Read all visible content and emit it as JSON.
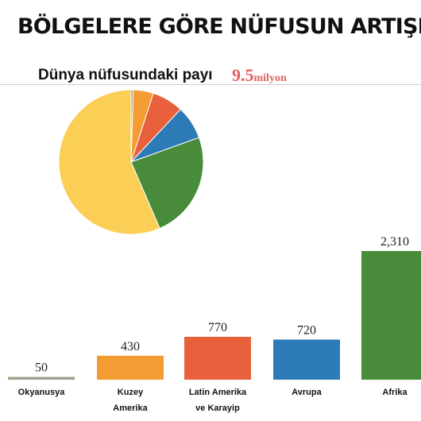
{
  "title": "BÖLGELERE GÖRE NÜFUSUN ARTIŞI",
  "pie": {
    "label": "Dünya nüfusundaki payı",
    "total_value": "9.5",
    "total_unit": "milyon"
  },
  "chart_data": [
    {
      "type": "pie",
      "title": "Dünya nüfusundaki payı",
      "values": [
        0.5,
        4.5,
        7.0,
        7.5,
        24.0,
        56.5
      ],
      "colors": [
        "#9ea08c",
        "#f49c34",
        "#e8613c",
        "#2c7bb6",
        "#478b3b",
        "#fbcf55"
      ]
    },
    {
      "type": "bar",
      "categories": [
        "Okyanusya",
        "Kuzey Amerika",
        "Latin Amerika ve Karayip",
        "Avrupa",
        "Afrika"
      ],
      "category_lines": [
        [
          "Okyanusya"
        ],
        [
          "Kuzey",
          "Amerika"
        ],
        [
          "Latin Amerika",
          "ve Karayip"
        ],
        [
          "Avrupa"
        ],
        [
          "Afrika"
        ]
      ],
      "values": [
        50,
        430,
        770,
        720,
        2310
      ],
      "value_labels": [
        "50",
        "430",
        "770",
        "720",
        "2,310"
      ],
      "colors": [
        "#9ea08c",
        "#f49c34",
        "#e8613c",
        "#2c7bb6",
        "#478b3b"
      ],
      "ylim": [
        0,
        2310
      ]
    }
  ]
}
